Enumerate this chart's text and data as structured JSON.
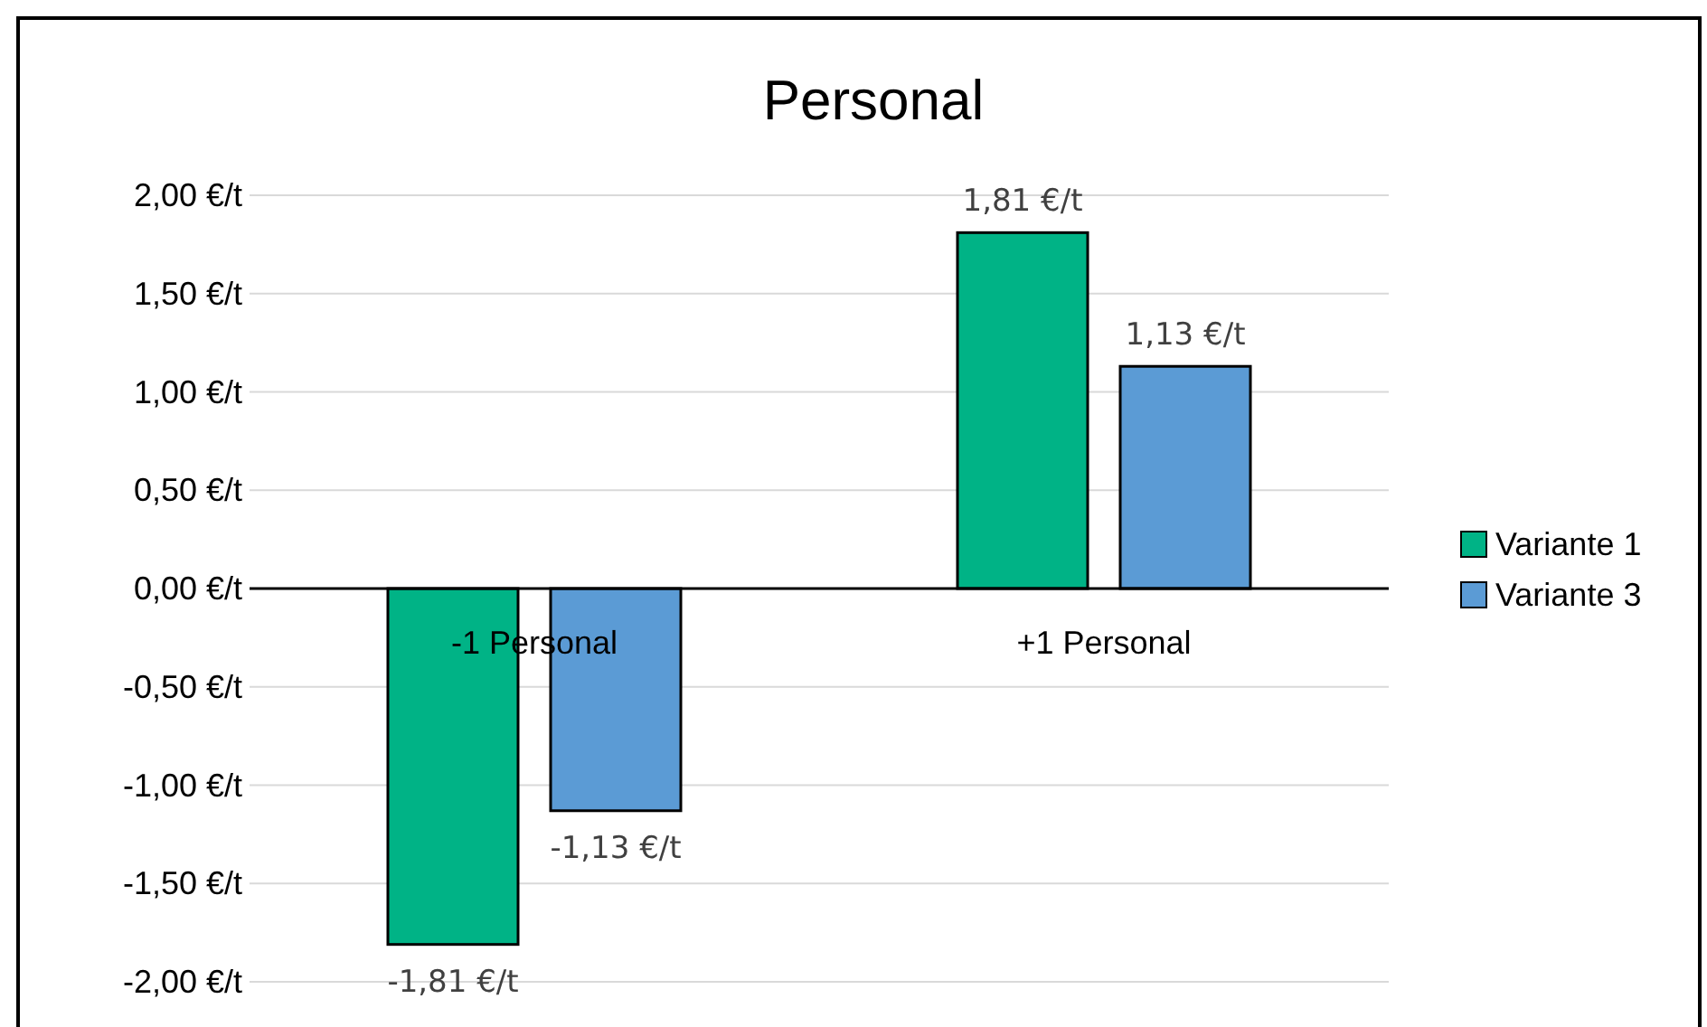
{
  "chart_data": {
    "type": "bar",
    "title": "Personal",
    "categories": [
      "-1 Personal",
      "+1 Personal"
    ],
    "series": [
      {
        "name": "Variante 1",
        "color": "#00b386",
        "values": [
          -1.81,
          1.81
        ],
        "value_labels": [
          "-1,81 €/t",
          "1,81 €/t"
        ]
      },
      {
        "name": "Variante 3",
        "color": "#5b9bd5",
        "values": [
          -1.13,
          1.13
        ],
        "value_labels": [
          "-1,13 €/t",
          "1,13 €/t"
        ]
      }
    ],
    "ylim": [
      -2,
      2
    ],
    "yticks": [
      {
        "value": -2,
        "label": "-2,00 €/t"
      },
      {
        "value": -1.5,
        "label": "-1,50 €/t"
      },
      {
        "value": -1,
        "label": "-1,00 €/t"
      },
      {
        "value": -0.5,
        "label": "-0,50 €/t"
      },
      {
        "value": 0,
        "label": "0,00 €/t"
      },
      {
        "value": 0.5,
        "label": "0,50 €/t"
      },
      {
        "value": 1,
        "label": "1,00 €/t"
      },
      {
        "value": 1.5,
        "label": "1,50 €/t"
      },
      {
        "value": 2,
        "label": "2,00 €/t"
      }
    ],
    "grid": "y",
    "legend": "right"
  }
}
